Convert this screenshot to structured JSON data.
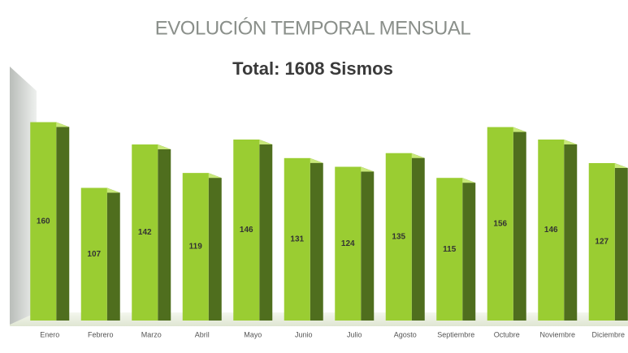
{
  "chart_data": {
    "type": "bar3d",
    "title": "EVOLUCIÓN TEMPORAL MENSUAL",
    "subtitle": "Total: 1608 Sismos",
    "categories": [
      "Enero",
      "Febrero",
      "Marzo",
      "Abril",
      "Mayo",
      "Junio",
      "Julio",
      "Agosto",
      "Septiembre",
      "Octubre",
      "Noviembre",
      "Diciembre"
    ],
    "values": [
      160,
      107,
      142,
      119,
      146,
      131,
      124,
      135,
      115,
      156,
      146,
      127
    ],
    "color": "#9acd32",
    "side_color": "#4f6e1e",
    "ylim": [
      0,
      180
    ]
  }
}
